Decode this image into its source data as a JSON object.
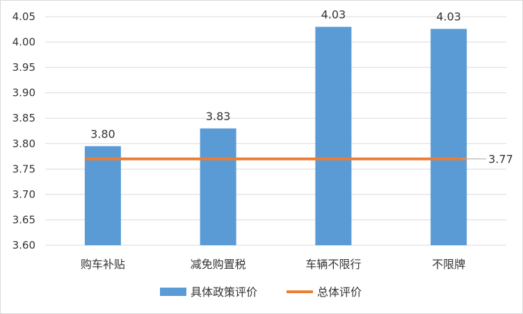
{
  "chart_data": {
    "type": "bar",
    "categories": [
      "购车补贴",
      "减免购置税",
      "车辆不限行",
      "不限牌"
    ],
    "series": [
      {
        "name": "具体政策评价",
        "type": "bar",
        "values": [
          3.795,
          3.83,
          4.03,
          4.026
        ],
        "labels": [
          "3.80",
          "3.83",
          "4.03",
          "4.03"
        ],
        "color": "#5b9bd5"
      },
      {
        "name": "总体评价",
        "type": "line",
        "values": [
          3.77,
          3.77,
          3.77,
          3.77
        ],
        "end_label": "3.77",
        "color": "#ed7d31"
      }
    ],
    "ylim": [
      3.6,
      4.05
    ],
    "yticks": [
      "3.60",
      "3.65",
      "3.70",
      "3.75",
      "3.80",
      "3.85",
      "3.90",
      "3.95",
      "4.00",
      "4.05"
    ],
    "grid": true,
    "legend": "bottom"
  }
}
